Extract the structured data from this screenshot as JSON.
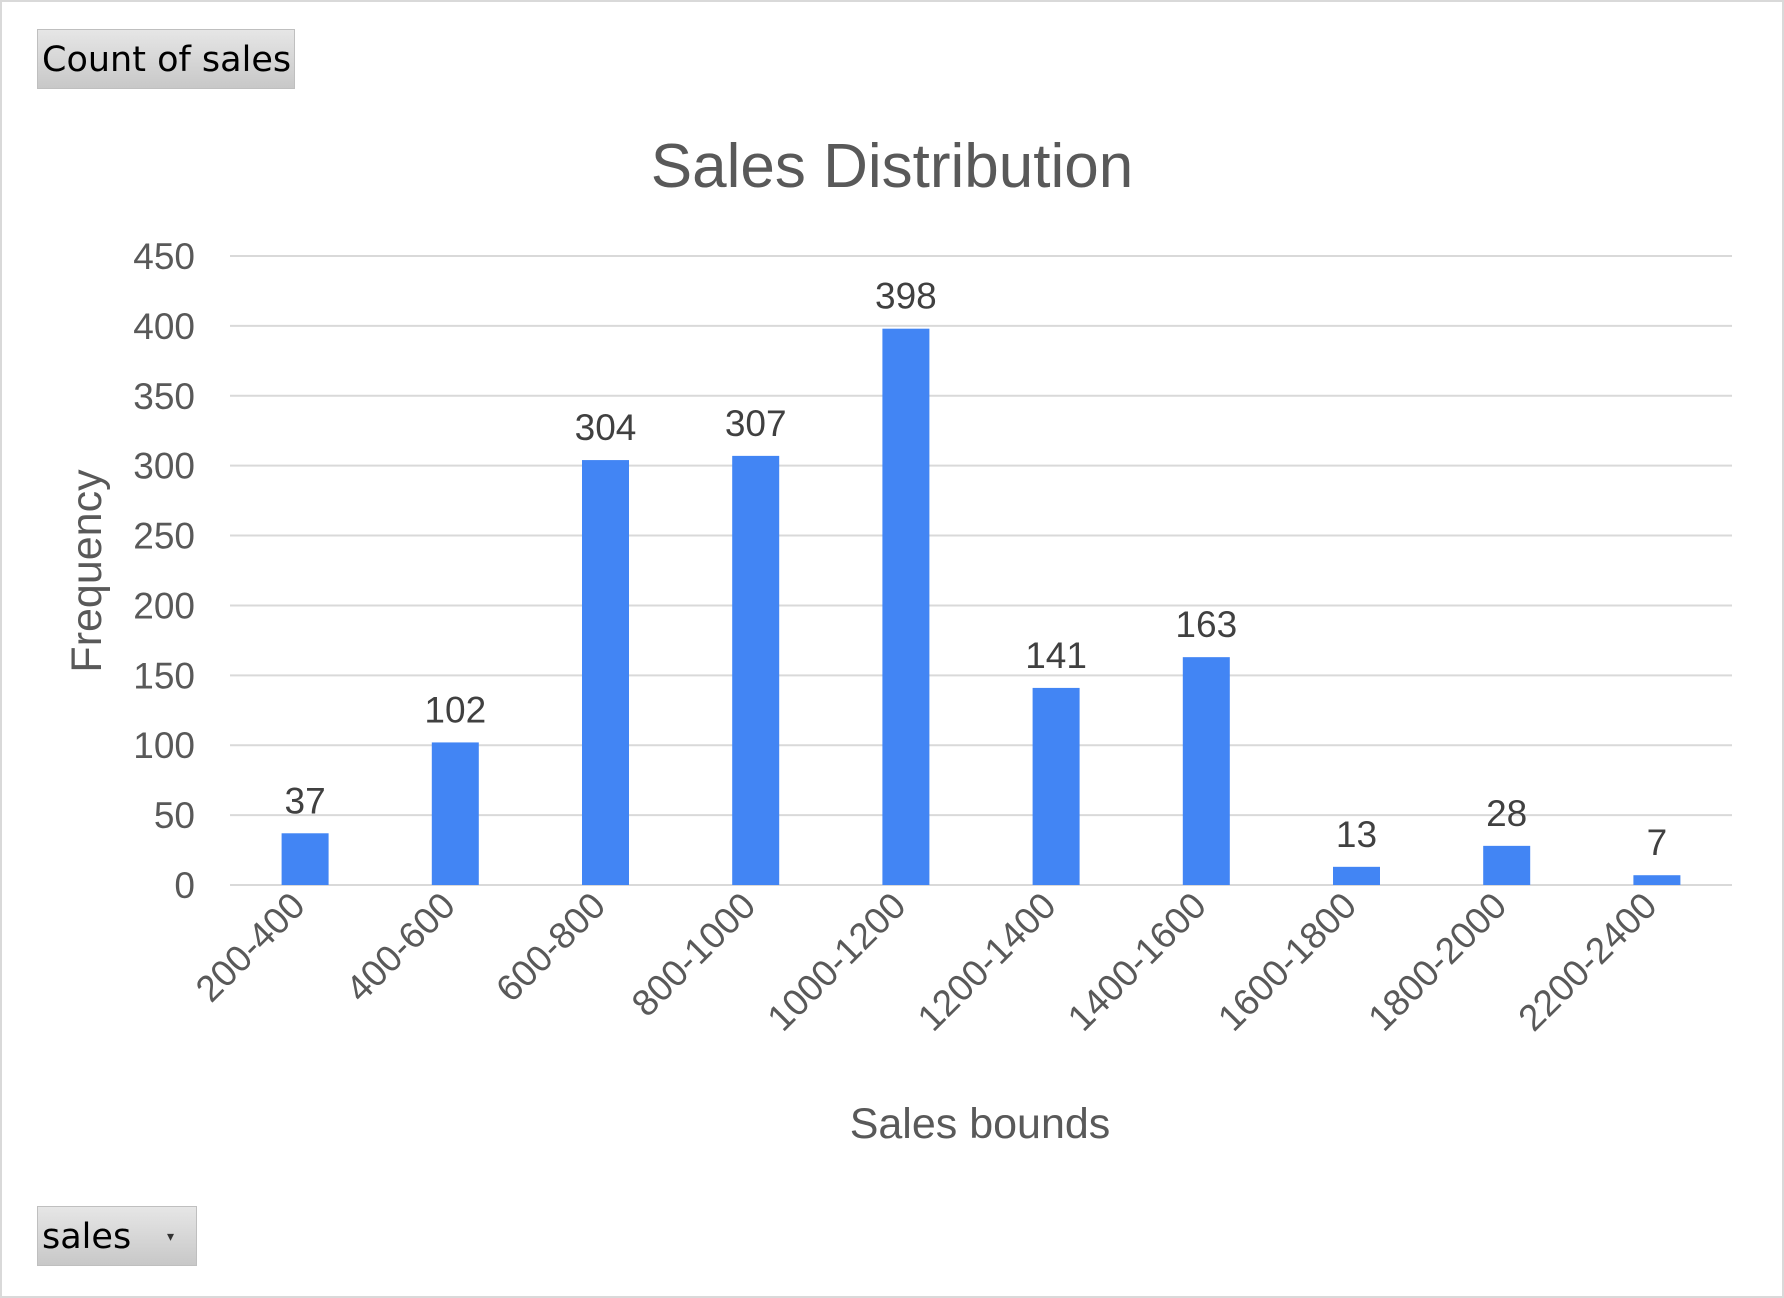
{
  "controls": {
    "value_field_label": "Count of sales",
    "axis_field_label": "sales",
    "axis_field_dropdown_icon": "chevron-down-icon"
  },
  "chart_data": {
    "type": "bar",
    "title": "Sales Distribution",
    "xlabel": "Sales bounds",
    "ylabel": "Frequency",
    "categories": [
      "200-400",
      "400-600",
      "600-800",
      "800-1000",
      "1000-1200",
      "1200-1400",
      "1400-1600",
      "1600-1800",
      "1800-2000",
      "2200-2400"
    ],
    "values": [
      37,
      102,
      304,
      307,
      398,
      141,
      163,
      13,
      28,
      7
    ],
    "ylim": [
      0,
      450
    ],
    "yticks": [
      0,
      50,
      100,
      150,
      200,
      250,
      300,
      350,
      400,
      450
    ],
    "grid": true,
    "legend": "none",
    "bar_color": "#4285f4"
  }
}
